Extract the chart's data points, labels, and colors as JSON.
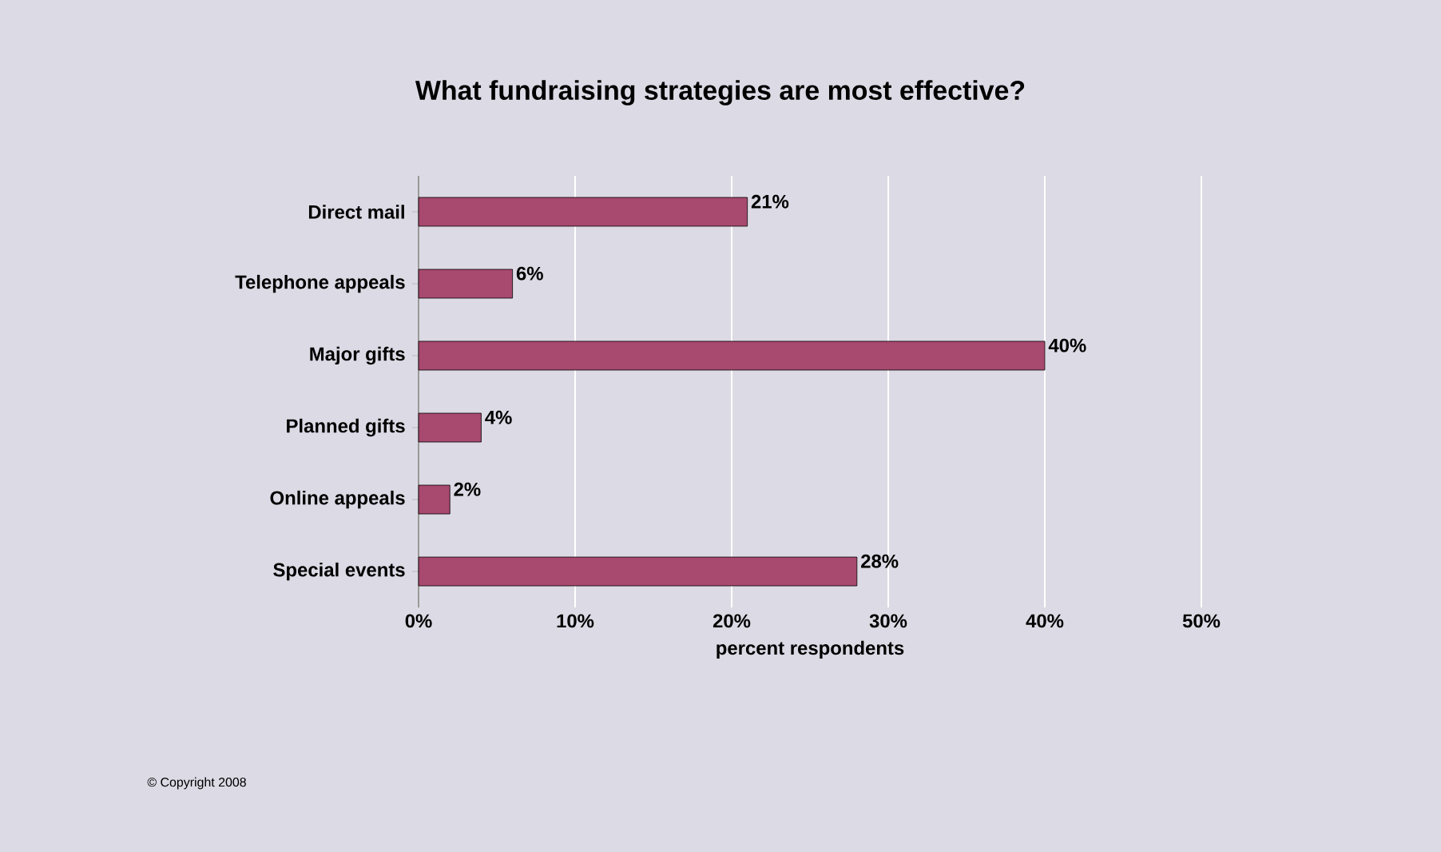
{
  "chart_data": {
    "type": "bar",
    "orientation": "horizontal",
    "title": "What fundraising strategies are most effective?",
    "categories": [
      "Direct mail",
      "Telephone appeals",
      "Major gifts",
      "Planned gifts",
      "Online appeals",
      "Special events"
    ],
    "values": [
      21,
      6,
      40,
      4,
      2,
      28
    ],
    "value_labels": [
      "21%",
      "6%",
      "40%",
      "4%",
      "2%",
      "28%"
    ],
    "color": "#a8496f",
    "xlabel": "percent respondents",
    "xlim": [
      0,
      50
    ],
    "xticks": [
      {
        "value": 0,
        "label": "0%"
      },
      {
        "value": 10,
        "label": "10%"
      },
      {
        "value": 20,
        "label": "20%"
      },
      {
        "value": 30,
        "label": "30%"
      },
      {
        "value": 40,
        "label": "40%"
      },
      {
        "value": 50,
        "label": "50%"
      }
    ],
    "grid": "x",
    "annotations": [
      "© Copyright 2008"
    ]
  }
}
